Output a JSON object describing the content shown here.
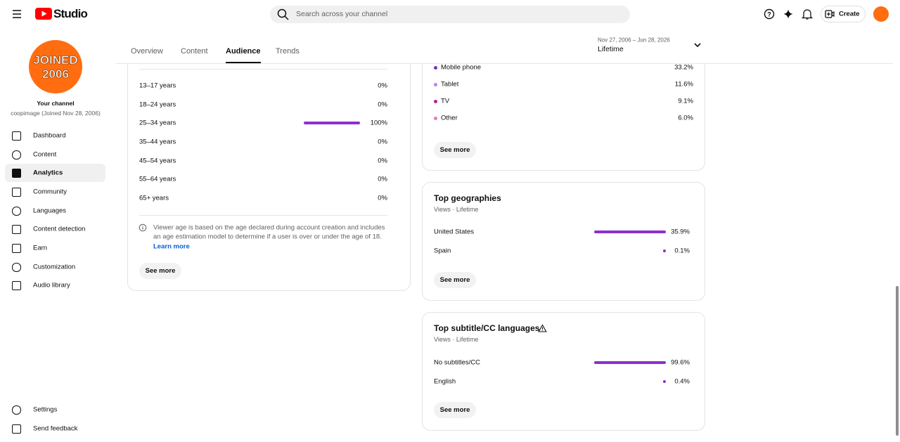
{
  "header": {
    "logo": "Studio",
    "search_placeholder": "Search across your channel",
    "create": "Create"
  },
  "sidebar": {
    "avatar": [
      "JOINED",
      "2006"
    ],
    "channel_title": "Your channel",
    "channel_sub": "coopimage (Joined Nov 28, 2006)",
    "items": [
      "Dashboard",
      "Content",
      "Analytics",
      "Community",
      "Languages",
      "Content detection",
      "Earn",
      "Customization",
      "Audio library"
    ],
    "active": 2,
    "bottom_items": [
      "Settings",
      "Send feedback"
    ]
  },
  "tabs": {
    "items": [
      "Overview",
      "Content",
      "Audience",
      "Trends"
    ],
    "active": 2
  },
  "date_range": {
    "range": "Nov 27, 2006 – Jun 28, 2026",
    "label": "Lifetime"
  },
  "age": {
    "rows": [
      {
        "label": "13–17 years",
        "share": {
          "value": 0,
          "label": "0%"
        }
      },
      {
        "label": "18–24 years",
        "share": {
          "value": 0,
          "label": "0%"
        }
      },
      {
        "label": "25–34 years",
        "share": {
          "value": 100,
          "label": "100%"
        }
      },
      {
        "label": "35–44 years",
        "share": {
          "value": 0,
          "label": "0%"
        }
      },
      {
        "label": "45–54 years",
        "share": {
          "value": 0,
          "label": "0%"
        }
      },
      {
        "label": "55–64 years",
        "share": {
          "value": 0,
          "label": "0%"
        }
      },
      {
        "label": "65+ years",
        "share": {
          "value": 0,
          "label": "0%"
        }
      }
    ],
    "note": [
      "Viewer age is based on the age declared during account creation and includes",
      "an age estimation model to determine if a user is over or under the age of 18."
    ],
    "learn_more": "Learn more",
    "see_more": "See more"
  },
  "devices": {
    "rows": [
      {
        "label": "Mobile phone",
        "share": {
          "value": 33.2,
          "label": "33.2%"
        },
        "color": "#7b2fbe"
      },
      {
        "label": "Tablet",
        "share": {
          "value": 11.6,
          "label": "11.6%"
        },
        "color": "#c27ee6"
      },
      {
        "label": "TV",
        "share": {
          "value": 9.1,
          "label": "9.1%"
        },
        "color": "#b4238f"
      },
      {
        "label": "Other",
        "share": {
          "value": 6.0,
          "label": "6.0%"
        },
        "color": "#e879b9"
      }
    ],
    "see_more": "See more"
  },
  "geographies": {
    "title": "Top geographies",
    "subtitle": "Views · Lifetime",
    "rows": [
      {
        "label": "United States",
        "share": {
          "value": 35.9,
          "label": "35.9%"
        }
      },
      {
        "label": "Spain",
        "share": {
          "value": 0.1,
          "label": "0.1%"
        }
      }
    ],
    "see_more": "See more"
  },
  "subtitles": {
    "title": "Top subtitle/CC languages",
    "subtitle": "Views · Lifetime",
    "rows": [
      {
        "label": "No subtitles/CC",
        "share": {
          "value": 99.6,
          "label": "99.6%"
        }
      },
      {
        "label": "English",
        "share": {
          "value": 0.4,
          "label": "0.4%"
        }
      }
    ],
    "see_more": "See more"
  }
}
